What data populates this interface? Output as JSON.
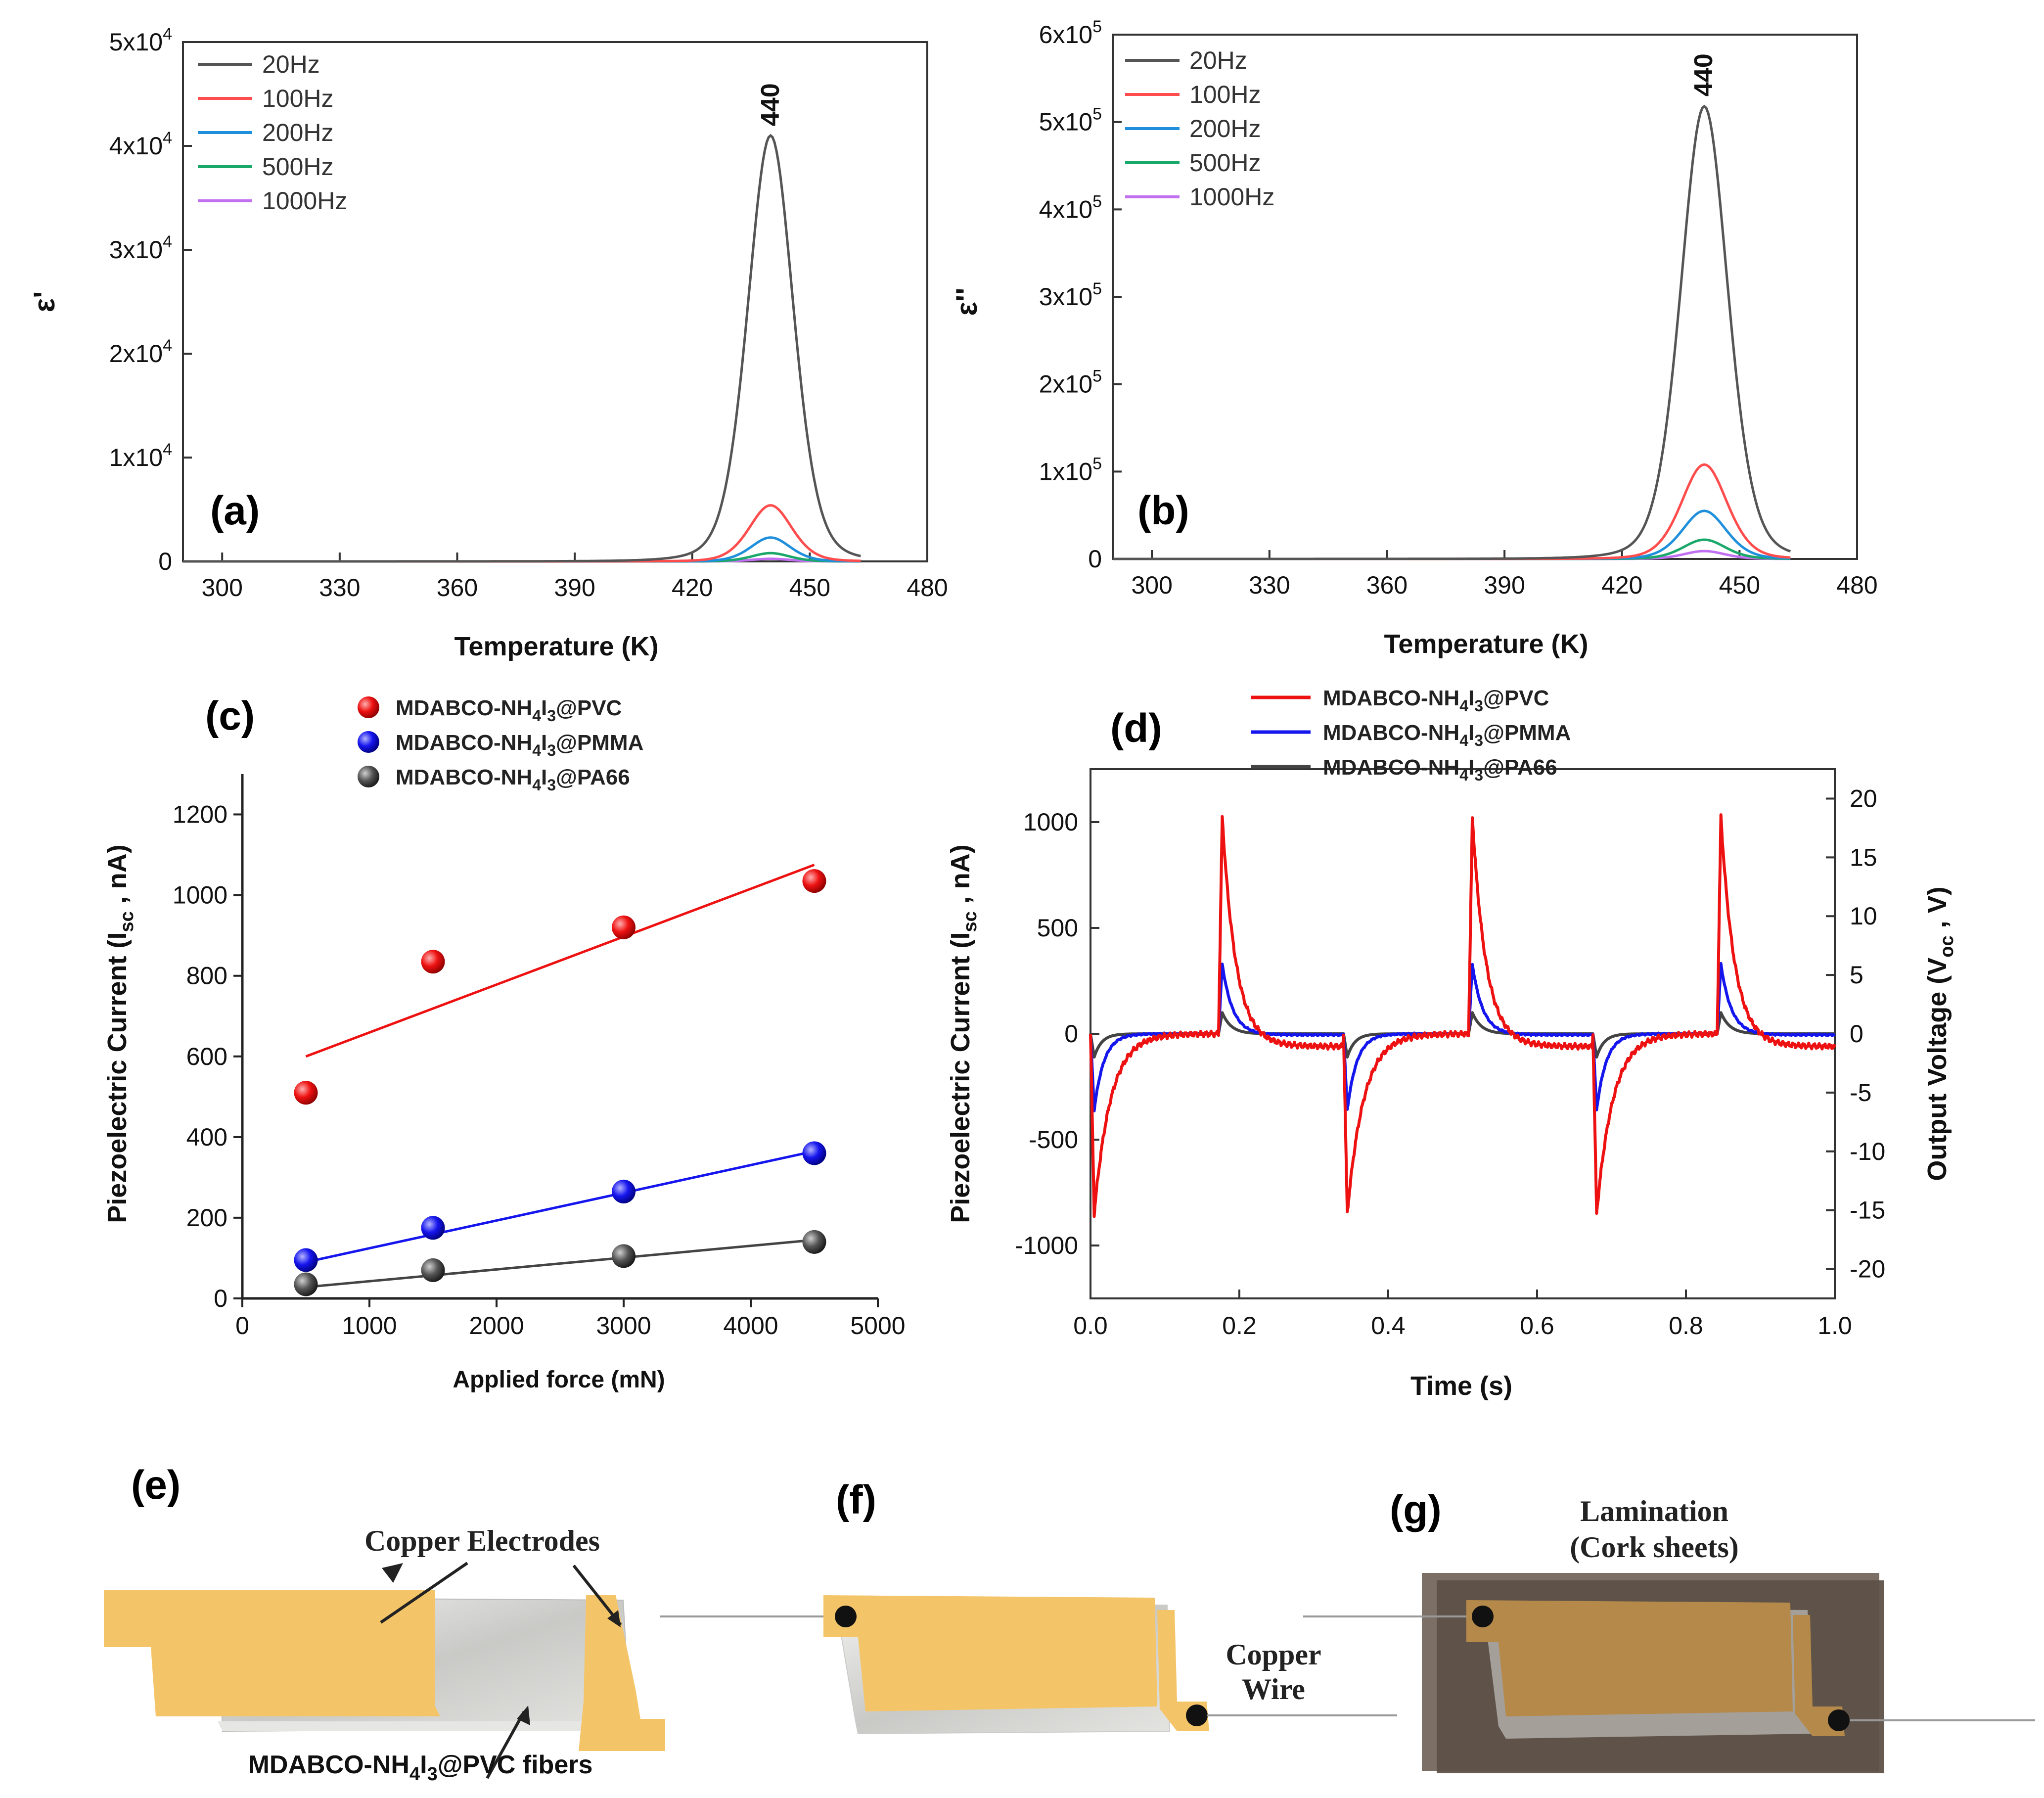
{
  "chart_data": [
    {
      "id": "a",
      "type": "line",
      "panel_label": "(a)",
      "xlabel": "Temperature (K)",
      "ylabel": "ε'",
      "xlim": [
        290,
        480
      ],
      "ylim": [
        0,
        50000
      ],
      "xticks": [
        300,
        330,
        360,
        390,
        420,
        450,
        480
      ],
      "yticks": [
        {
          "v": 0,
          "label": "0"
        },
        {
          "v": 10000,
          "label": "1x10",
          "exp": "4"
        },
        {
          "v": 20000,
          "label": "2x10",
          "exp": "4"
        },
        {
          "v": 30000,
          "label": "3x10",
          "exp": "4"
        },
        {
          "v": 40000,
          "label": "4x10",
          "exp": "4"
        },
        {
          "v": 50000,
          "label": "5x10",
          "exp": "4"
        }
      ],
      "peak_label": "440",
      "peak_x": 440,
      "x_range": [
        290,
        463
      ],
      "series": [
        {
          "name": "20Hz",
          "color": "#555555",
          "peak": 41000,
          "sigma": 6.0,
          "base": 0
        },
        {
          "name": "100Hz",
          "color": "#ff4d4d",
          "peak": 5400,
          "sigma": 5.6,
          "base": 0
        },
        {
          "name": "200Hz",
          "color": "#1f8fdc",
          "peak": 2300,
          "sigma": 5.2,
          "base": 0
        },
        {
          "name": "500Hz",
          "color": "#1aa86a",
          "peak": 800,
          "sigma": 5.0,
          "base": 0
        },
        {
          "name": "1000Hz",
          "color": "#c070f0",
          "peak": 250,
          "sigma": 5.0,
          "base": 0
        }
      ]
    },
    {
      "id": "b",
      "type": "line",
      "panel_label": "(b)",
      "xlabel": "Temperature (K)",
      "ylabel": "ε''",
      "xlim": [
        290,
        480
      ],
      "ylim": [
        0,
        600000
      ],
      "xticks": [
        300,
        330,
        360,
        390,
        420,
        450,
        480
      ],
      "yticks": [
        {
          "v": 0,
          "label": "0"
        },
        {
          "v": 100000,
          "label": "1x10",
          "exp": "5"
        },
        {
          "v": 200000,
          "label": "2x10",
          "exp": "5"
        },
        {
          "v": 300000,
          "label": "3x10",
          "exp": "5"
        },
        {
          "v": 400000,
          "label": "4x10",
          "exp": "5"
        },
        {
          "v": 500000,
          "label": "5x10",
          "exp": "5"
        },
        {
          "v": 600000,
          "label": "6x10",
          "exp": "5"
        }
      ],
      "peak_label": "440",
      "peak_x": 441,
      "x_range": [
        290,
        463
      ],
      "series": [
        {
          "name": "20Hz",
          "color": "#555555",
          "peak": 518000,
          "sigma": 6.2,
          "base": 0
        },
        {
          "name": "100Hz",
          "color": "#ff4d4d",
          "peak": 108000,
          "sigma": 6.0,
          "base": 0
        },
        {
          "name": "200Hz",
          "color": "#1f8fdc",
          "peak": 55000,
          "sigma": 5.8,
          "base": 0
        },
        {
          "name": "500Hz",
          "color": "#1aa86a",
          "peak": 22000,
          "sigma": 5.6,
          "base": 0
        },
        {
          "name": "1000Hz",
          "color": "#c070f0",
          "peak": 9000,
          "sigma": 5.4,
          "base": 0
        }
      ]
    },
    {
      "id": "c",
      "type": "scatter",
      "panel_label": "(c)",
      "xlabel": "Applied force (mN)",
      "ylabel_main": "Piezoelectric Current (I",
      "ylabel_sub": "sc",
      "ylabel_tail": " , nA)",
      "xlim": [
        0,
        5000
      ],
      "ylim": [
        0,
        1300
      ],
      "xticks": [
        0,
        1000,
        2000,
        3000,
        4000,
        5000
      ],
      "yticks": [
        0,
        200,
        400,
        600,
        800,
        1000,
        1200
      ],
      "x": [
        500,
        1500,
        3000,
        4500
      ],
      "series": [
        {
          "name_a": "MDABCO-NH",
          "name_b": "4",
          "name_c": "I",
          "name_d": "3",
          "name_e": "@PVC",
          "color": "#ee1111",
          "values": [
            510,
            835,
            920,
            1035
          ],
          "fit": [
            600,
            1075
          ]
        },
        {
          "name_a": "MDABCO-NH",
          "name_b": "4",
          "name_c": "I",
          "name_d": "3",
          "name_e": "@PMMA",
          "color": "#1515ee",
          "values": [
            95,
            175,
            265,
            360
          ],
          "fit": [
            90,
            365
          ]
        },
        {
          "name_a": "MDABCO-NH",
          "name_b": "4",
          "name_c": "I",
          "name_d": "3",
          "name_e": "@PA66",
          "color": "#444444",
          "values": [
            35,
            70,
            105,
            140
          ],
          "fit": [
            28,
            145
          ]
        }
      ]
    },
    {
      "id": "d",
      "type": "line",
      "panel_label": "(d)",
      "xlabel": "Time (s)",
      "ylabel_main": "Piezoelectric Current (I",
      "ylabel_sub": "sc",
      "ylabel_tail": " , nA)",
      "y2label_main": "Output Voltage (V",
      "y2label_sub": "oc",
      "y2label_tail": " , V)",
      "xlim": [
        0,
        1.0
      ],
      "ylim": [
        -1250,
        1250
      ],
      "y2lim": [
        -22.5,
        22.5
      ],
      "xticks": [
        "0.0",
        "0.2",
        "0.4",
        "0.6",
        "0.8",
        "1.0"
      ],
      "yticks": [
        -1000,
        -500,
        0,
        500,
        1000
      ],
      "y2ticks": [
        -20,
        -15,
        -10,
        -5,
        0,
        5,
        10,
        15,
        20
      ],
      "press_times": [
        0.0,
        0.34,
        0.675
      ],
      "release_times": [
        0.172,
        0.508,
        0.842
      ],
      "series": [
        {
          "name_a": "MDABCO-NH",
          "name_b": "4",
          "name_c": "I",
          "name_d": "3",
          "name_e": "@PVC",
          "color": "#ee1111",
          "pos_peak": 1035,
          "neg_peak": -850,
          "tail": -60,
          "tau_pos": 0.018,
          "tau_neg": 0.022
        },
        {
          "name_a": "MDABCO-NH",
          "name_b": "4",
          "name_c": "I",
          "name_d": "3",
          "name_e": "@PMMA",
          "color": "#1515ee",
          "pos_peak": 330,
          "neg_peak": -360,
          "tail": -5,
          "tau_pos": 0.014,
          "tau_neg": 0.013
        },
        {
          "name_a": "MDABCO-NH",
          "name_b": "4",
          "name_c": "I",
          "name_d": "3",
          "name_e": "@PA66",
          "color": "#444444",
          "pos_peak": 100,
          "neg_peak": -110,
          "tail": 0,
          "tau_pos": 0.012,
          "tau_neg": 0.01
        }
      ]
    }
  ],
  "schematics": {
    "e": {
      "panel_label": "(e)",
      "electrodes_label": "Copper Electrodes",
      "fibers_a": "MDABCO-NH",
      "fibers_b": "4",
      "fibers_c": "I",
      "fibers_d": "3",
      "fibers_e": "@PVC fibers"
    },
    "f": {
      "panel_label": "(f)",
      "wire_line1": "Copper",
      "wire_line2": "Wire"
    },
    "g": {
      "panel_label": "(g)",
      "lam_line1": "Lamination",
      "lam_line2": "(Cork sheets)"
    }
  },
  "colors": {
    "copper": "#f4c568",
    "fiber": "#d2d2cf",
    "cork": "#5e5148"
  }
}
